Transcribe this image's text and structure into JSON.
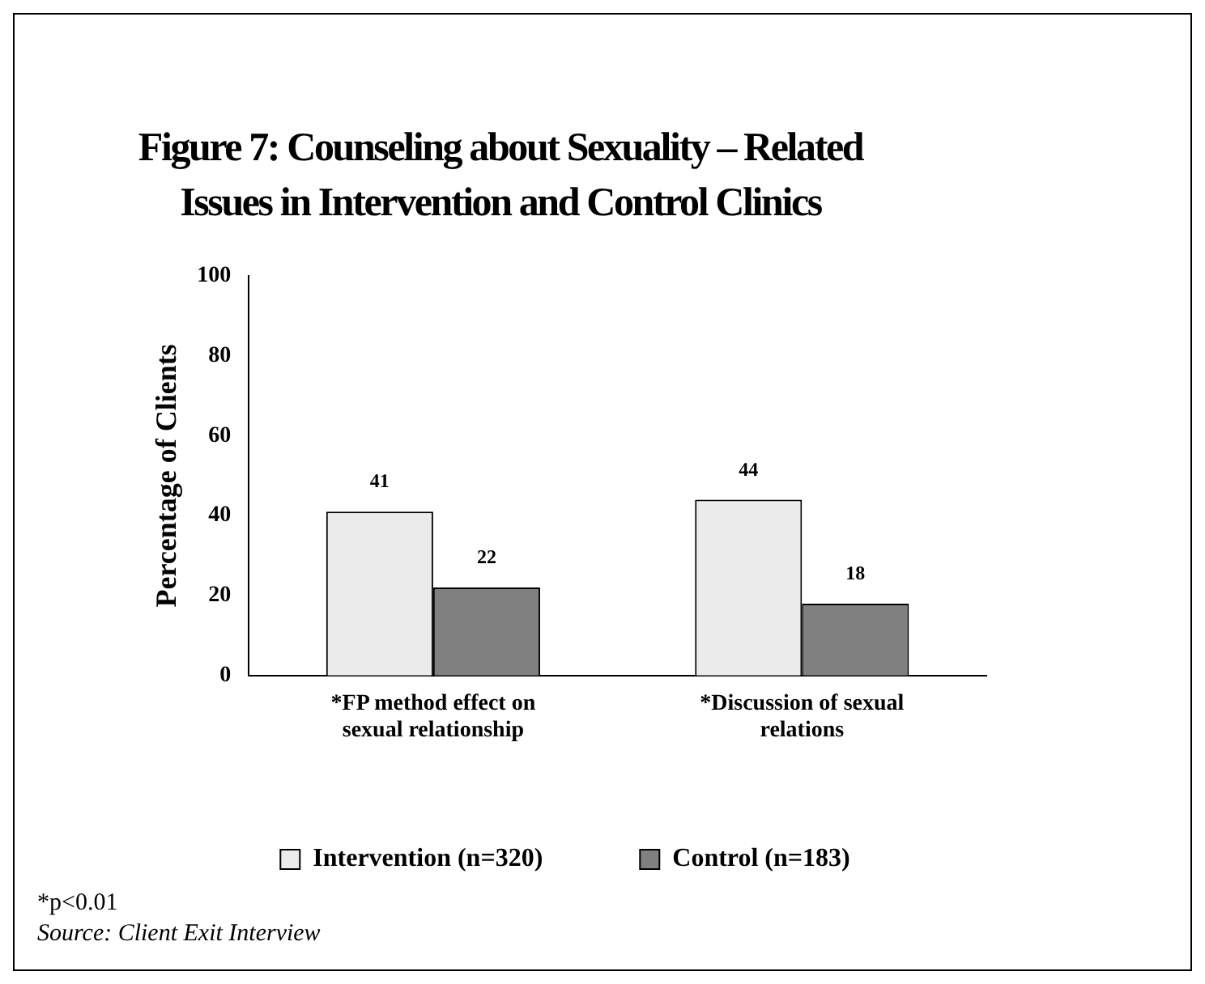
{
  "chart_data": {
    "type": "bar",
    "title": "Figure 7:  Counseling about Sexuality – Related Issues in Intervention and Control Clinics",
    "ylabel": "Percentage of Clients",
    "categories": [
      "*FP method effect on sexual relationship",
      "*Discussion of sexual relations"
    ],
    "series": [
      {
        "name": "Intervention (n=320)",
        "color": "#ebebeb",
        "values": [
          41,
          44
        ]
      },
      {
        "name": "Control (n=183)",
        "color": "#808080",
        "values": [
          22,
          18
        ]
      }
    ],
    "ylim": [
      0,
      100
    ],
    "yticks": [
      0,
      20,
      40,
      60,
      80,
      100
    ],
    "grid": false,
    "legend": "bottom",
    "data_labels": true,
    "annotations": [
      "*p<0.01",
      "Source: Client Exit Interview"
    ]
  }
}
